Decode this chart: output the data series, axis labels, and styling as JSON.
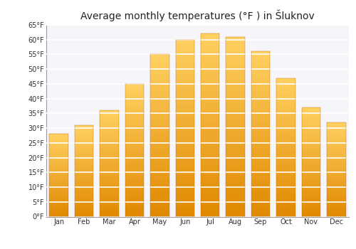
{
  "title": "Average monthly temperatures (°F ) in Šluknov",
  "months": [
    "Jan",
    "Feb",
    "Mar",
    "Apr",
    "May",
    "Jun",
    "Jul",
    "Aug",
    "Sep",
    "Oct",
    "Nov",
    "Dec"
  ],
  "values": [
    28.0,
    31.0,
    36.0,
    45.0,
    55.0,
    60.0,
    62.0,
    61.0,
    56.0,
    47.0,
    37.0,
    32.0
  ],
  "bar_color_bottom": "#E08000",
  "bar_color_top": "#FFD060",
  "ylim": [
    0,
    65
  ],
  "yticks": [
    0,
    5,
    10,
    15,
    20,
    25,
    30,
    35,
    40,
    45,
    50,
    55,
    60,
    65
  ],
  "ytick_labels": [
    "0°F",
    "5°F",
    "10°F",
    "15°F",
    "20°F",
    "25°F",
    "30°F",
    "35°F",
    "40°F",
    "45°F",
    "50°F",
    "55°F",
    "60°F",
    "65°F"
  ],
  "background_color": "#ffffff",
  "plot_bg_color": "#f5f5fa",
  "grid_color": "#ffffff",
  "title_fontsize": 10,
  "tick_fontsize": 7
}
